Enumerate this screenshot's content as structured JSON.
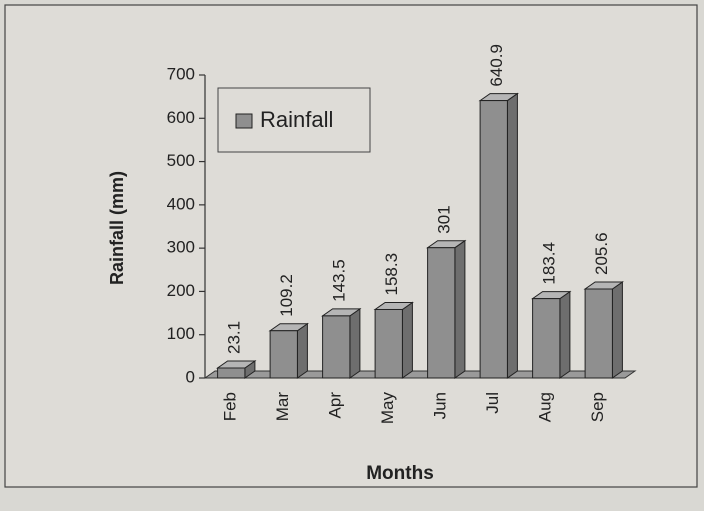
{
  "chart_data": {
    "type": "bar3d",
    "categories": [
      "Feb",
      "Mar",
      "Apr",
      "May",
      "Jun",
      "Jul",
      "Aug",
      "Sep"
    ],
    "series": [
      {
        "name": "Rainfall",
        "color": "#8f8f8f",
        "values": [
          23.1,
          109.2,
          143.5,
          158.3,
          301,
          640.9,
          183.4,
          205.6
        ]
      }
    ],
    "ylim": [
      0,
      700
    ],
    "yticks": [
      0,
      100,
      200,
      300,
      400,
      500,
      600,
      700
    ],
    "y_label": "Rainfall (mm)",
    "x_label": "Months",
    "legend": "upper left"
  }
}
